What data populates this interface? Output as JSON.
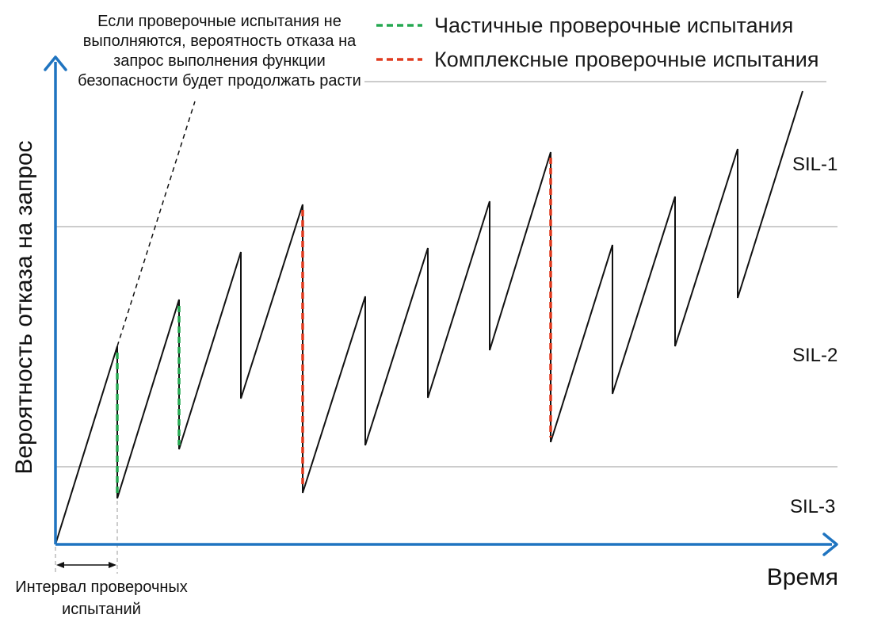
{
  "axes": {
    "ylabel": "Вероятность отказа на запрос",
    "xlabel": "Время",
    "color": "#1f74c0"
  },
  "legend": {
    "items": [
      {
        "label": "Частичные проверочные испытания",
        "color": "#25a851"
      },
      {
        "label": "Комплексные проверочные испытания",
        "color": "#e03a1e"
      }
    ]
  },
  "annotation": {
    "lines": [
      "Если проверочные испытания не",
      "выполняются, вероятность отказа на",
      "запрос выполнения функции",
      "безопасности будет продолжать расти"
    ]
  },
  "interval": {
    "lines": [
      "Интервал проверочных",
      "испытаний"
    ]
  },
  "sil_levels": [
    "SIL-1",
    "SIL-2",
    "SIL-3"
  ],
  "colors": {
    "curve": "#111111",
    "boundary": "#9a9a9a",
    "partial_test": "#25a851",
    "full_test": "#e03a1e"
  }
}
